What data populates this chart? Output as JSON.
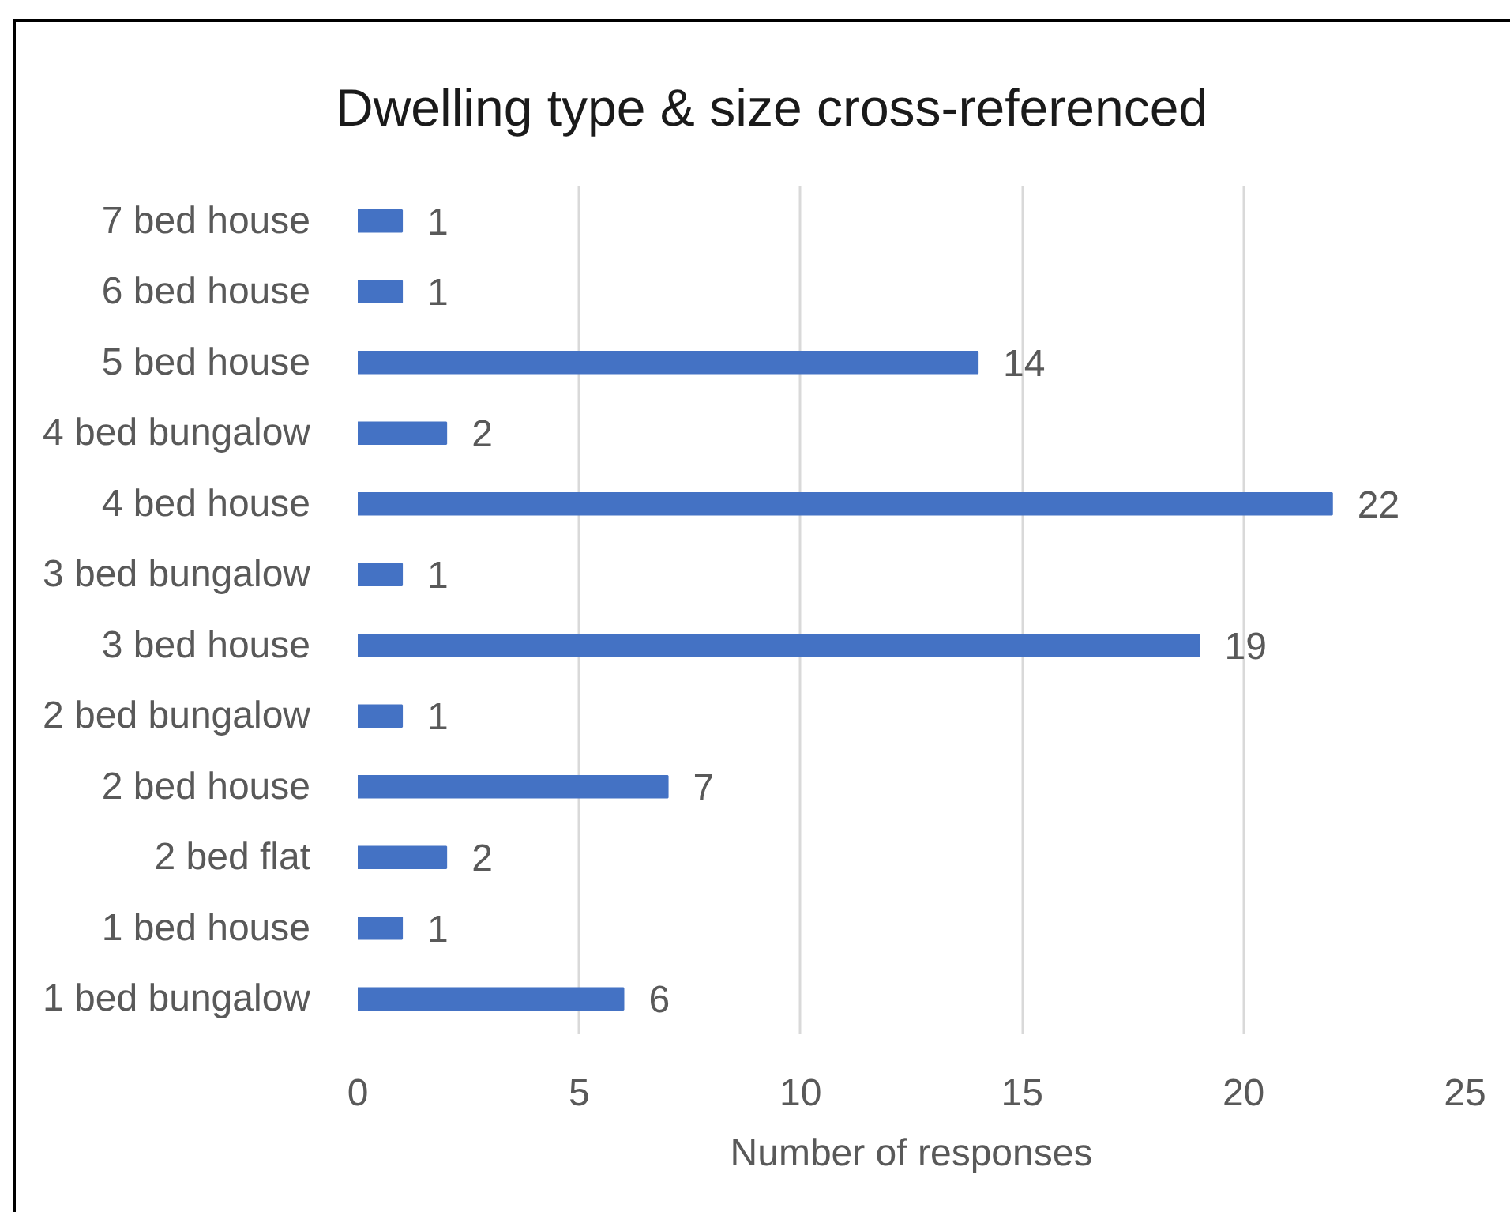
{
  "chart_data": {
    "type": "bar",
    "orientation": "horizontal",
    "title": "Dwelling type & size cross-referenced",
    "xlabel": "Number of responses",
    "categories": [
      "7 bed house",
      "6 bed house",
      "5 bed house",
      "4 bed bungalow",
      "4 bed house",
      "3 bed bungalow",
      "3 bed house",
      "2 bed bungalow",
      "2 bed house",
      "2 bed flat",
      "1 bed house",
      "1 bed bungalow"
    ],
    "values": [
      1,
      1,
      14,
      2,
      22,
      1,
      19,
      1,
      7,
      2,
      1,
      6
    ],
    "color": "#4472c4",
    "xlim": [
      0,
      25
    ],
    "xticks": [
      0,
      5,
      10,
      15,
      20,
      25
    ],
    "grid": "x",
    "data_labels": true
  }
}
